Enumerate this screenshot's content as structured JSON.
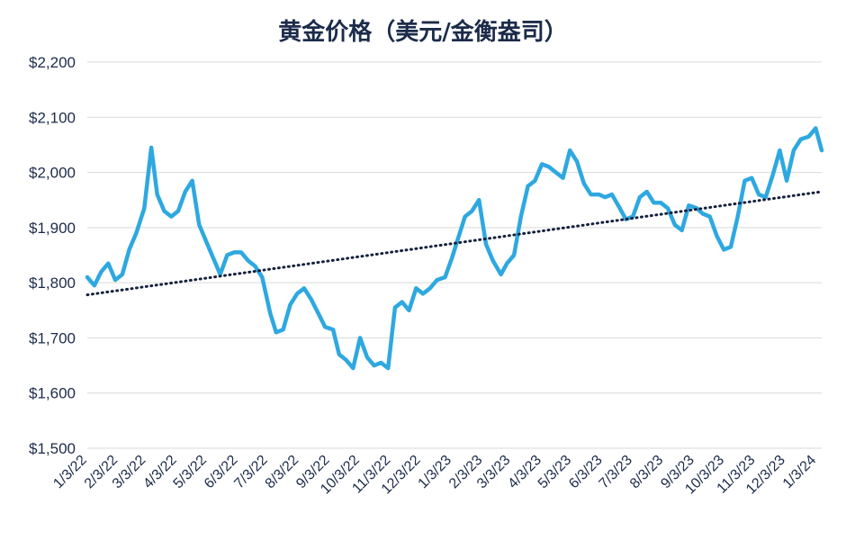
{
  "chart_data": {
    "type": "line",
    "title": "黄金价格（美元/金衡盎司）",
    "xlabel": "",
    "ylabel": "",
    "ylim": [
      1500,
      2200
    ],
    "y_ticks": [
      "$1,500",
      "$1,600",
      "$1,700",
      "$1,800",
      "$1,900",
      "$2,000",
      "$2,100",
      "$2,200"
    ],
    "y_tick_values": [
      1500,
      1600,
      1700,
      1800,
      1900,
      2000,
      2100,
      2200
    ],
    "x_ticks": [
      "1/3/22",
      "2/3/22",
      "3/3/22",
      "4/3/22",
      "5/3/22",
      "6/3/22",
      "7/3/22",
      "8/3/22",
      "9/3/22",
      "10/3/22",
      "11/3/22",
      "12/3/22",
      "1/3/23",
      "2/3/23",
      "3/3/23",
      "4/3/23",
      "5/3/23",
      "6/3/23",
      "7/3/23",
      "8/3/23",
      "9/3/23",
      "10/3/23",
      "11/3/23",
      "12/3/23",
      "1/3/24"
    ],
    "grid": true,
    "series": [
      {
        "color": "#2ea8e0",
        "style": "solid",
        "x": [
          "2022-01-03",
          "2022-01-10",
          "2022-01-17",
          "2022-01-24",
          "2022-01-31",
          "2022-02-07",
          "2022-02-14",
          "2022-02-21",
          "2022-03-01",
          "2022-03-08",
          "2022-03-14",
          "2022-03-21",
          "2022-03-28",
          "2022-04-04",
          "2022-04-11",
          "2022-04-18",
          "2022-04-25",
          "2022-05-02",
          "2022-05-09",
          "2022-05-16",
          "2022-05-23",
          "2022-05-30",
          "2022-06-06",
          "2022-06-13",
          "2022-06-20",
          "2022-06-27",
          "2022-07-05",
          "2022-07-11",
          "2022-07-18",
          "2022-07-25",
          "2022-08-01",
          "2022-08-08",
          "2022-08-15",
          "2022-08-22",
          "2022-08-29",
          "2022-09-06",
          "2022-09-12",
          "2022-09-19",
          "2022-09-26",
          "2022-10-03",
          "2022-10-10",
          "2022-10-17",
          "2022-10-24",
          "2022-10-31",
          "2022-11-07",
          "2022-11-14",
          "2022-11-21",
          "2022-11-28",
          "2022-12-05",
          "2022-12-12",
          "2022-12-19",
          "2022-12-27",
          "2023-01-03",
          "2023-01-09",
          "2023-01-16",
          "2023-01-23",
          "2023-01-30",
          "2023-02-06",
          "2023-02-13",
          "2023-02-21",
          "2023-02-27",
          "2023-03-06",
          "2023-03-13",
          "2023-03-20",
          "2023-03-27",
          "2023-04-03",
          "2023-04-10",
          "2023-04-17",
          "2023-04-24",
          "2023-05-01",
          "2023-05-08",
          "2023-05-15",
          "2023-05-22",
          "2023-05-30",
          "2023-06-05",
          "2023-06-12",
          "2023-06-20",
          "2023-06-26",
          "2023-07-03",
          "2023-07-10",
          "2023-07-17",
          "2023-07-24",
          "2023-07-31",
          "2023-08-07",
          "2023-08-14",
          "2023-08-21",
          "2023-08-28",
          "2023-09-05",
          "2023-09-11",
          "2023-09-18",
          "2023-09-25",
          "2023-10-02",
          "2023-10-09",
          "2023-10-16",
          "2023-10-23",
          "2023-10-30",
          "2023-11-06",
          "2023-11-13",
          "2023-11-20",
          "2023-11-27",
          "2023-12-04",
          "2023-12-11",
          "2023-12-18",
          "2023-12-26",
          "2024-01-02",
          "2024-01-08"
        ],
        "values": [
          1810,
          1795,
          1820,
          1835,
          1805,
          1815,
          1860,
          1890,
          1935,
          2045,
          1960,
          1930,
          1920,
          1930,
          1965,
          1985,
          1905,
          1875,
          1845,
          1815,
          1850,
          1855,
          1855,
          1840,
          1830,
          1810,
          1745,
          1710,
          1715,
          1760,
          1780,
          1790,
          1770,
          1745,
          1720,
          1715,
          1670,
          1660,
          1645,
          1700,
          1665,
          1650,
          1655,
          1645,
          1755,
          1765,
          1750,
          1790,
          1780,
          1790,
          1805,
          1810,
          1845,
          1880,
          1920,
          1930,
          1950,
          1870,
          1840,
          1815,
          1835,
          1850,
          1920,
          1975,
          1985,
          2015,
          2010,
          2000,
          1990,
          2040,
          2020,
          1980,
          1960,
          1960,
          1955,
          1960,
          1935,
          1915,
          1920,
          1955,
          1965,
          1945,
          1945,
          1935,
          1905,
          1895,
          1940,
          1935,
          1925,
          1920,
          1885,
          1860,
          1865,
          1920,
          1985,
          1990,
          1960,
          1955,
          1995,
          2040,
          1985,
          2040,
          2060,
          2065,
          2080,
          2040
        ]
      },
      {
        "color": "#14213d",
        "style": "dotted",
        "x": [
          "2022-01-03",
          "2024-01-08"
        ],
        "values": [
          1778,
          1965
        ]
      }
    ]
  }
}
